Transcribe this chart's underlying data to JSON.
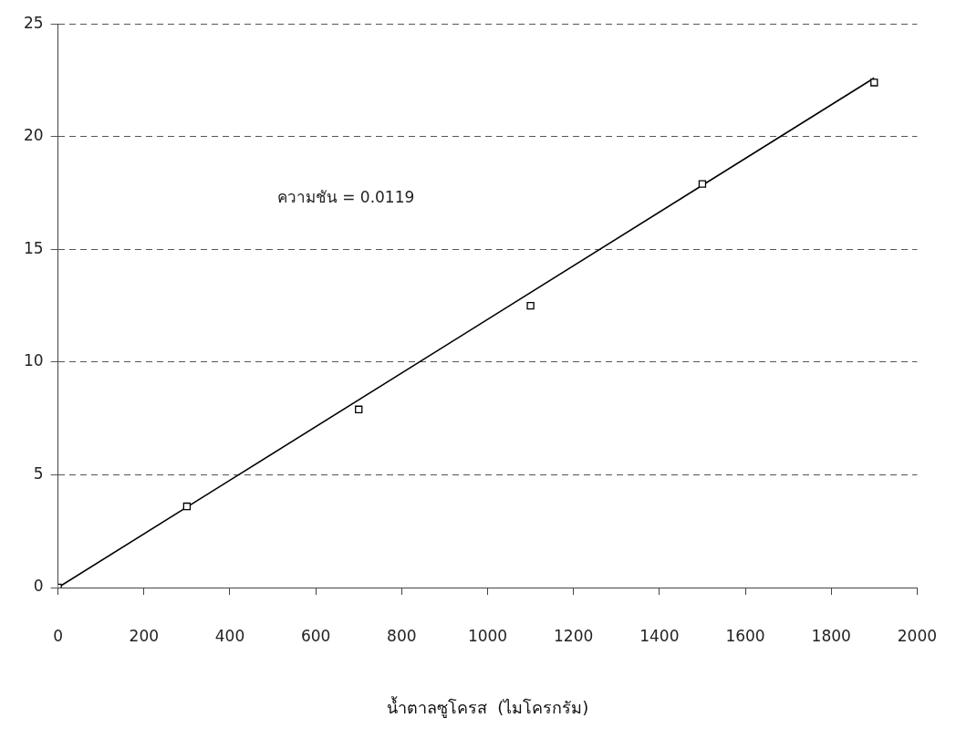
{
  "chart_data": {
    "type": "scatter",
    "xlabel": "น้ำตาลซูโครส  (ไมโครกรัม)",
    "annotations": [
      "ความชัน = 0.0119"
    ],
    "series": [
      {
        "color": "#000000",
        "x": [
          0,
          300,
          700,
          1100,
          1500,
          1900
        ],
        "values": [
          0,
          3.6,
          7.9,
          12.5,
          17.9,
          22.4
        ],
        "marker": "square"
      },
      {
        "type": "line",
        "color": "#000000",
        "x": [
          0,
          1900
        ],
        "values": [
          0,
          22.6
        ],
        "marker": "none",
        "line_style": "solid"
      }
    ],
    "xlim": [
      0,
      2000
    ],
    "xticks": [
      0,
      200,
      400,
      600,
      800,
      1000,
      1200,
      1400,
      1600,
      1800,
      2000
    ],
    "ylim": [
      0,
      25
    ],
    "yticks": [
      0,
      5,
      10,
      15,
      20,
      25
    ],
    "grid": "y",
    "legend": false
  }
}
